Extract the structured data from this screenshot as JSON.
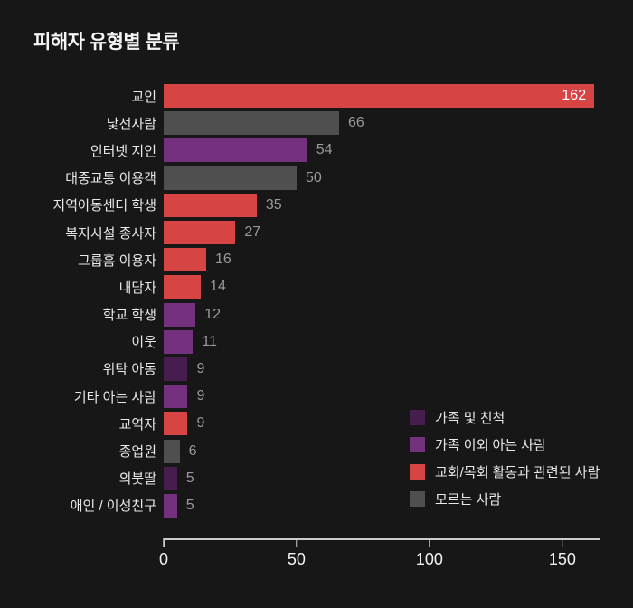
{
  "title": "피해자 유형별 분류",
  "colors": {
    "family": "#471c4e",
    "acquaintance": "#74327e",
    "church": "#d64444",
    "stranger": "#4f4f4f",
    "background": "#171717",
    "axis": "#cccccc",
    "category_label": "#e8e8e8",
    "value_label_outside": "#9a9a9a",
    "value_label_inside": "#ffffff"
  },
  "chart_data": {
    "type": "bar",
    "orientation": "horizontal",
    "title": "피해자 유형별 분류",
    "categories": [
      "교인",
      "낯선사람",
      "인터넷 지인",
      "대중교통 이용객",
      "지역아동센터 학생",
      "복지시설 종사자",
      "그룹홈 이용자",
      "내담자",
      "학교 학생",
      "이웃",
      "위탁 아동",
      "기타 아는 사람",
      "교역자",
      "종업원",
      "의붓딸",
      "애인 / 이성친구"
    ],
    "values": [
      162,
      66,
      54,
      50,
      35,
      27,
      16,
      14,
      12,
      11,
      9,
      9,
      9,
      6,
      5,
      5
    ],
    "groups": [
      "church",
      "stranger",
      "acquaintance",
      "stranger",
      "church",
      "church",
      "church",
      "church",
      "acquaintance",
      "acquaintance",
      "family",
      "acquaintance",
      "church",
      "stranger",
      "family",
      "acquaintance"
    ],
    "xlim": [
      0,
      164
    ],
    "x_ticks": [
      0,
      50,
      100,
      150
    ],
    "value_label_inside_min": 150,
    "grid": "off",
    "legend_position": "inside-right-bottom",
    "legend": [
      {
        "key": "family",
        "label": "가족 및 친척"
      },
      {
        "key": "acquaintance",
        "label": "가족 이외 아는 사람"
      },
      {
        "key": "church",
        "label": "교회/목회 활동과 관련된 사람"
      },
      {
        "key": "stranger",
        "label": "모르는 사람"
      }
    ]
  }
}
